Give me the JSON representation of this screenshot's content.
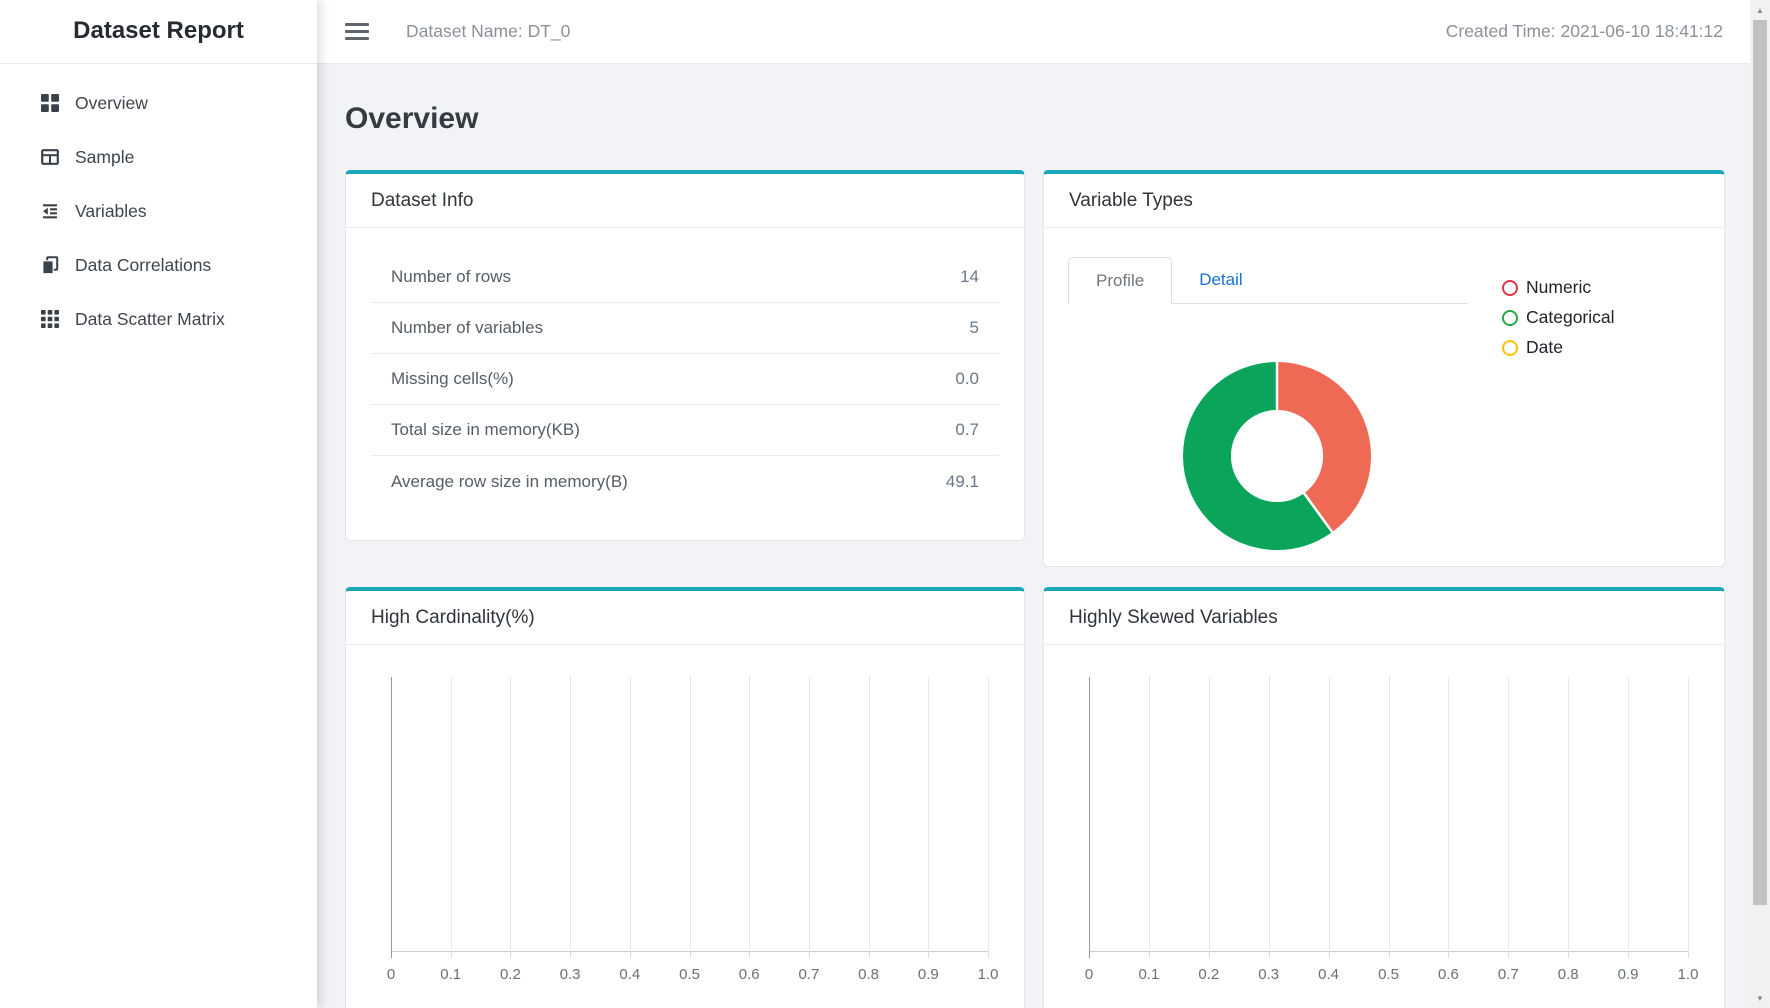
{
  "sidebar": {
    "title": "Dataset Report",
    "items": [
      {
        "label": "Overview",
        "icon": "grid-icon"
      },
      {
        "label": "Sample",
        "icon": "table-icon"
      },
      {
        "label": "Variables",
        "icon": "outdent-icon"
      },
      {
        "label": "Data Correlations",
        "icon": "copy-icon"
      },
      {
        "label": "Data Scatter Matrix",
        "icon": "th-grid-icon"
      }
    ]
  },
  "header": {
    "dataset_name": "Dataset Name: DT_0",
    "created_time": "Created Time: 2021-06-10 18:41:12"
  },
  "page": {
    "title": "Overview"
  },
  "theme": {
    "card_accent": "#17a7b8"
  },
  "cards": {
    "dataset_info": {
      "title": "Dataset Info",
      "rows": [
        {
          "label": "Number of rows",
          "value": "14"
        },
        {
          "label": "Number of variables",
          "value": "5"
        },
        {
          "label": "Missing cells(%)",
          "value": "0.0"
        },
        {
          "label": "Total size in memory(KB)",
          "value": "0.7"
        },
        {
          "label": "Average row size in memory(B)",
          "value": "49.1"
        }
      ]
    },
    "variable_types": {
      "title": "Variable Types",
      "tabs": [
        {
          "label": "Profile",
          "active": true
        },
        {
          "label": "Detail",
          "active": false
        }
      ],
      "legend": [
        {
          "label": "Numeric",
          "color": "#dc3545"
        },
        {
          "label": "Categorical",
          "color": "#28a745"
        },
        {
          "label": "Date",
          "color": "#ffc107"
        }
      ],
      "chart_data": {
        "type": "pie",
        "donut": true,
        "legend_position": "right",
        "series": [
          {
            "name": "Numeric",
            "percent": 40,
            "color": "#ee6a55"
          },
          {
            "name": "Categorical",
            "percent": 60,
            "color": "#0aa45b"
          },
          {
            "name": "Date",
            "percent": 0,
            "color": "#ffc107"
          }
        ]
      }
    },
    "high_cardinality": {
      "title": "High Cardinality(%)",
      "chart_data": {
        "type": "bar",
        "orientation": "horizontal",
        "values": [],
        "categories": [],
        "xlim": [
          0,
          1.0
        ],
        "grid": true,
        "x_ticks": [
          "0",
          "0.1",
          "0.2",
          "0.3",
          "0.4",
          "0.5",
          "0.6",
          "0.7",
          "0.8",
          "0.9",
          "1.0"
        ]
      }
    },
    "highly_skewed": {
      "title": "Highly Skewed Variables",
      "chart_data": {
        "type": "bar",
        "orientation": "horizontal",
        "values": [],
        "categories": [],
        "xlim": [
          0,
          1.0
        ],
        "grid": true,
        "x_ticks": [
          "0",
          "0.1",
          "0.2",
          "0.3",
          "0.4",
          "0.5",
          "0.6",
          "0.7",
          "0.8",
          "0.9",
          "1.0"
        ]
      }
    }
  }
}
